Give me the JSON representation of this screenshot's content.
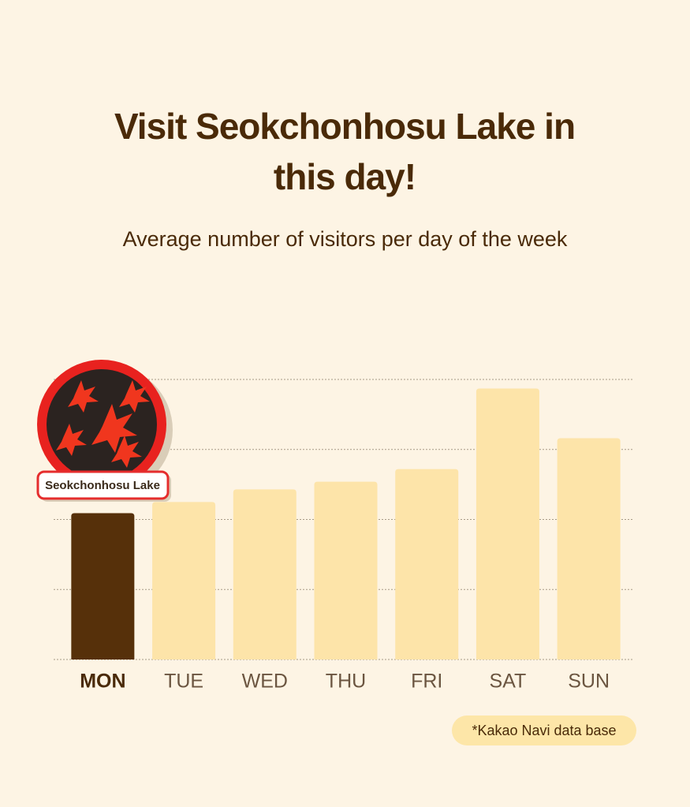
{
  "chart_data": {
    "type": "bar",
    "title": "Visit Seokchonhosu Lake in this day!",
    "subtitle": "Average number of visitors per day of the week",
    "annotation": "Seokchonhosu Lake",
    "note": "*Kakao Navi data base",
    "categories": [
      "MON",
      "TUE",
      "WED",
      "THU",
      "FRI",
      "SAT",
      "SUN"
    ],
    "values": [
      2.09,
      2.25,
      2.43,
      2.54,
      2.72,
      3.87,
      3.16
    ],
    "colors": [
      "#56300a",
      "#fde4a9",
      "#fde4a9",
      "#fde4a9",
      "#fde4a9",
      "#fde4a9",
      "#fde4a9"
    ],
    "highlight": 0,
    "ylim": [
      0,
      4
    ],
    "yticks": [
      0,
      1,
      2,
      3,
      4
    ],
    "grid": true
  }
}
